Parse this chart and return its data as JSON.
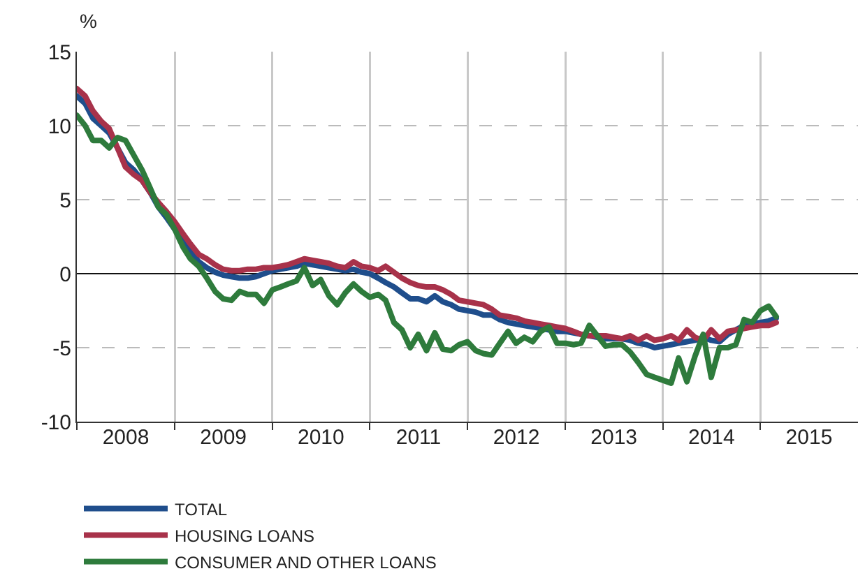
{
  "chart_data": {
    "type": "line",
    "ylabel": "%",
    "x": [
      "2008-01",
      "2008-02",
      "2008-03",
      "2008-04",
      "2008-05",
      "2008-06",
      "2008-07",
      "2008-08",
      "2008-09",
      "2008-10",
      "2008-11",
      "2008-12",
      "2009-01",
      "2009-02",
      "2009-03",
      "2009-04",
      "2009-05",
      "2009-06",
      "2009-07",
      "2009-08",
      "2009-09",
      "2009-10",
      "2009-11",
      "2009-12",
      "2010-01",
      "2010-02",
      "2010-03",
      "2010-04",
      "2010-05",
      "2010-06",
      "2010-07",
      "2010-08",
      "2010-09",
      "2010-10",
      "2010-11",
      "2010-12",
      "2011-01",
      "2011-02",
      "2011-03",
      "2011-04",
      "2011-05",
      "2011-06",
      "2011-07",
      "2011-08",
      "2011-09",
      "2011-10",
      "2011-11",
      "2011-12",
      "2012-01",
      "2012-02",
      "2012-03",
      "2012-04",
      "2012-05",
      "2012-06",
      "2012-07",
      "2012-08",
      "2012-09",
      "2012-10",
      "2012-11",
      "2012-12",
      "2013-01",
      "2013-02",
      "2013-03",
      "2013-04",
      "2013-05",
      "2013-06",
      "2013-07",
      "2013-08",
      "2013-09",
      "2013-10",
      "2013-11",
      "2013-12",
      "2014-01",
      "2014-02",
      "2014-03",
      "2014-04",
      "2014-05",
      "2014-06",
      "2014-07",
      "2014-08",
      "2014-09",
      "2014-10",
      "2014-11",
      "2014-12",
      "2015-01",
      "2015-02",
      "2015-03"
    ],
    "series": [
      {
        "name": "TOTAL",
        "color": "#1f4e8c",
        "values": [
          12,
          11.5,
          10.5,
          10,
          9.5,
          8.5,
          7.5,
          7,
          6.3,
          5.5,
          4.5,
          3.8,
          3,
          2.2,
          1.5,
          0.8,
          0.4,
          0.1,
          -0.1,
          -0.2,
          -0.3,
          -0.3,
          -0.2,
          0,
          0.2,
          0.3,
          0.4,
          0.5,
          0.7,
          0.6,
          0.5,
          0.4,
          0.3,
          0.2,
          0.3,
          0.1,
          0,
          -0.3,
          -0.6,
          -0.9,
          -1.3,
          -1.7,
          -1.7,
          -1.9,
          -1.5,
          -1.9,
          -2.1,
          -2.4,
          -2.5,
          -2.6,
          -2.8,
          -2.8,
          -3.1,
          -3.3,
          -3.4,
          -3.5,
          -3.6,
          -3.7,
          -3.8,
          -3.9,
          -3.9,
          -4,
          -4.1,
          -4.2,
          -4.3,
          -4.4,
          -4.4,
          -4.4,
          -4.5,
          -4.7,
          -4.8,
          -5,
          -4.9,
          -4.8,
          -4.7,
          -4.6,
          -4.5,
          -4.3,
          -4.5,
          -4.6,
          -4.1,
          -3.8,
          -3.5,
          -3.4,
          -3.3,
          -3.2,
          -3
        ]
      },
      {
        "name": "HOUSING LOANS",
        "color": "#a8324a",
        "values": [
          12.5,
          12,
          11,
          10.3,
          9.8,
          8.5,
          7.2,
          6.7,
          6.3,
          5.5,
          4.8,
          4.2,
          3.5,
          2.7,
          2,
          1.3,
          1,
          0.6,
          0.3,
          0.2,
          0.2,
          0.3,
          0.3,
          0.4,
          0.4,
          0.5,
          0.6,
          0.8,
          1,
          0.9,
          0.8,
          0.7,
          0.5,
          0.4,
          0.8,
          0.5,
          0.4,
          0.2,
          0.5,
          0.1,
          -0.3,
          -0.6,
          -0.8,
          -0.9,
          -0.9,
          -1.1,
          -1.4,
          -1.8,
          -1.9,
          -2,
          -2.1,
          -2.4,
          -2.8,
          -2.9,
          -3,
          -3.2,
          -3.3,
          -3.4,
          -3.5,
          -3.6,
          -3.7,
          -3.9,
          -4.1,
          -4.2,
          -4.2,
          -4.2,
          -4.3,
          -4.4,
          -4.2,
          -4.5,
          -4.2,
          -4.5,
          -4.4,
          -4.2,
          -4.5,
          -3.8,
          -4.3,
          -4.5,
          -3.8,
          -4.4,
          -3.9,
          -3.8,
          -3.7,
          -3.6,
          -3.5,
          -3.5,
          -3.3
        ]
      },
      {
        "name": "CONSUMER AND OTHER LOANS",
        "color": "#2e7b3c",
        "values": [
          10.7,
          10,
          9,
          9,
          8.5,
          9.2,
          9,
          8,
          7,
          5.8,
          4.5,
          4,
          3,
          1.8,
          1,
          0.5,
          -0.3,
          -1.2,
          -1.7,
          -1.8,
          -1.2,
          -1.4,
          -1.4,
          -2,
          -1.1,
          -0.9,
          -0.7,
          -0.5,
          0.4,
          -0.8,
          -0.4,
          -1.5,
          -2.1,
          -1.3,
          -0.7,
          -1.2,
          -1.6,
          -1.4,
          -1.8,
          -3.3,
          -3.8,
          -5,
          -4.1,
          -5.2,
          -4,
          -5.1,
          -5.2,
          -4.8,
          -4.6,
          -5.2,
          -5.4,
          -5.5,
          -4.7,
          -3.9,
          -4.7,
          -4.3,
          -4.6,
          -3.9,
          -3.6,
          -4.7,
          -4.7,
          -4.8,
          -4.7,
          -3.5,
          -4.2,
          -4.9,
          -4.8,
          -4.8,
          -5.3,
          -6,
          -6.8,
          -7,
          -7.2,
          -7.4,
          -5.7,
          -7.3,
          -5.6,
          -4.1,
          -7,
          -5,
          -5,
          -4.8,
          -3.1,
          -3.3,
          -2.5,
          -2.2,
          -2.9
        ]
      }
    ],
    "xlim": [
      "2008-01-01",
      "2016-01-01"
    ],
    "xticks": [
      {
        "value": "2008-01-01",
        "label": null
      },
      {
        "value": "2009-01-01",
        "label": null
      },
      {
        "value": "2010-01-01",
        "label": null
      },
      {
        "value": "2011-01-01",
        "label": null
      },
      {
        "value": "2012-01-01",
        "label": null
      },
      {
        "value": "2013-01-01",
        "label": null
      },
      {
        "value": "2014-01-01",
        "label": null
      },
      {
        "value": "2015-01-01",
        "label": null
      },
      {
        "value": "2008-07-02",
        "label": "2008"
      },
      {
        "value": "2009-07-02",
        "label": "2009"
      },
      {
        "value": "2010-07-02",
        "label": "2010"
      },
      {
        "value": "2011-07-02",
        "label": "2011"
      },
      {
        "value": "2012-07-02",
        "label": "2012"
      },
      {
        "value": "2013-07-02",
        "label": "2013"
      },
      {
        "value": "2014-07-02",
        "label": "2014"
      },
      {
        "value": "2015-07-02",
        "label": "2015"
      }
    ],
    "ylim": [
      -10,
      15
    ],
    "yticks": [
      -10,
      -5,
      0,
      5,
      10,
      15
    ],
    "grid": true,
    "legend": "bottom left",
    "line_style": "solid",
    "marker": "none"
  }
}
